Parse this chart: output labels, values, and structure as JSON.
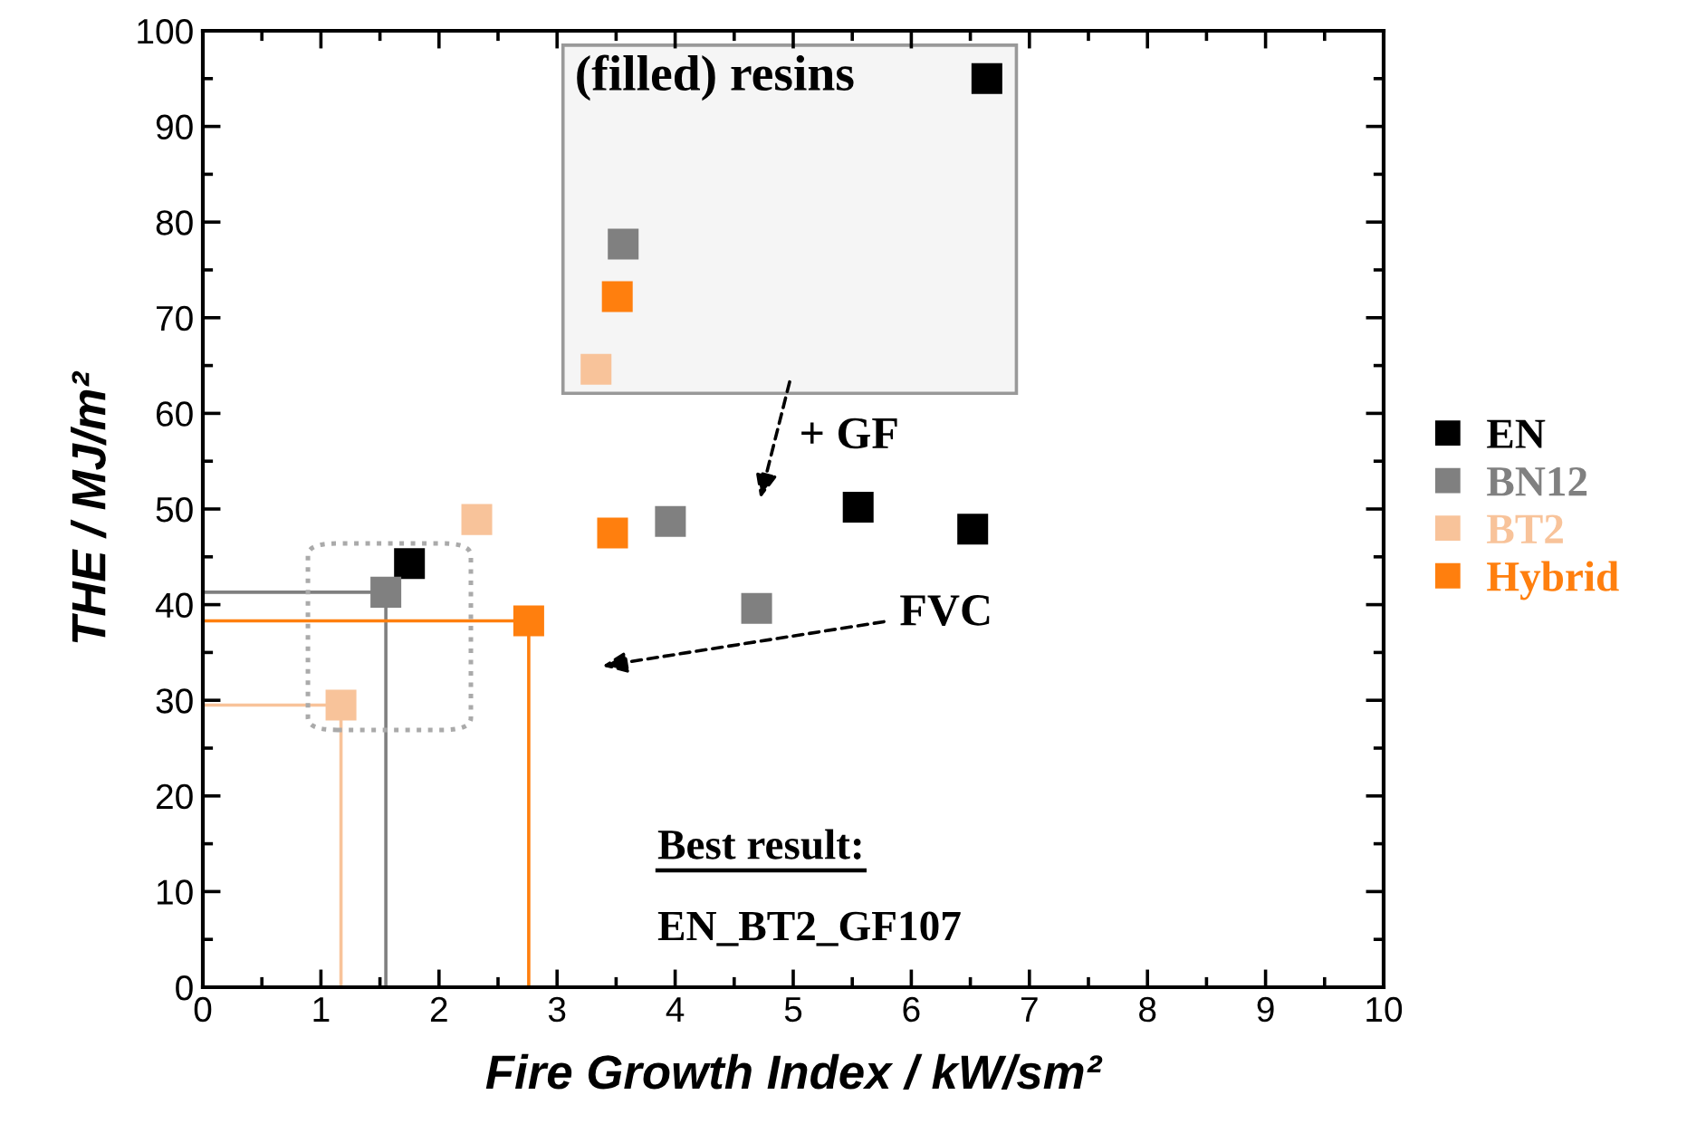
{
  "chart_data": {
    "type": "scatter",
    "xlabel": "Fire Growth Index / kW/sm²",
    "ylabel": "THE / MJ/m²",
    "xlim": [
      0,
      10
    ],
    "xticks": [
      0,
      1,
      2,
      3,
      4,
      5,
      6,
      7,
      8,
      9,
      10
    ],
    "ylim": [
      0,
      100
    ],
    "yticks": [
      0,
      10,
      20,
      30,
      40,
      50,
      60,
      70,
      80,
      90,
      100
    ],
    "grid": false,
    "legend": "right",
    "marker": "square",
    "series": [
      {
        "name": "EN",
        "color": "#000000",
        "x": [
          6.64,
          1.75,
          5.55,
          6.52
        ],
        "values": [
          95,
          44.3,
          50.2,
          47.9
        ]
      },
      {
        "name": "BN12",
        "color": "#808080",
        "x": [
          3.56,
          1.55,
          3.96,
          4.69
        ],
        "values": [
          77.7,
          41.3,
          48.7,
          39.6
        ]
      },
      {
        "name": "BT2",
        "color": "#f8c39a",
        "x": [
          3.33,
          2.32,
          1.17
        ],
        "values": [
          64.6,
          48.9,
          29.5
        ]
      },
      {
        "name": "Hybrid",
        "color": "#ff7f0e",
        "x": [
          3.51,
          3.47,
          2.76
        ],
        "values": [
          72.2,
          47.5,
          38.3
        ]
      },
      {
        "type": "line",
        "marker": "none",
        "color": "#808080",
        "x": [
          0,
          1.55,
          1.55
        ],
        "values": [
          41.3,
          41.3,
          0
        ]
      },
      {
        "type": "line",
        "marker": "none",
        "color": "#ff7f0e",
        "x": [
          0,
          2.76,
          2.76
        ],
        "values": [
          38.3,
          38.3,
          0
        ]
      },
      {
        "type": "line",
        "marker": "none",
        "color": "#f8c39a",
        "x": [
          0,
          1.17,
          1.17
        ],
        "values": [
          29.5,
          29.5,
          0
        ]
      }
    ],
    "annotations": [
      "(filled) resins",
      "+ GF",
      "FVC",
      "Best result:",
      "EN_BT2_GF107"
    ]
  }
}
